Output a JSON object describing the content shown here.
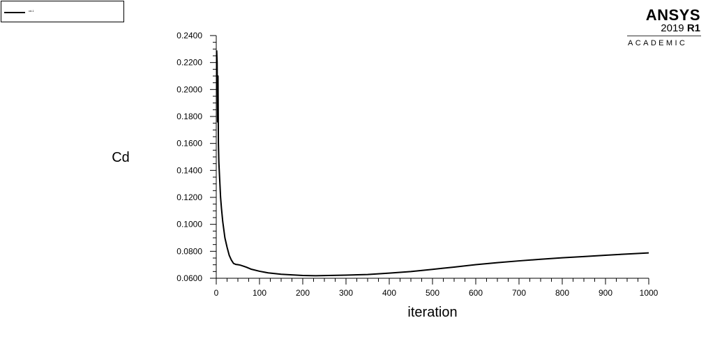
{
  "legend": {
    "entry": "cd-1"
  },
  "logo": {
    "brand": "ANSYS",
    "version": "2019",
    "release": "R1",
    "edition": "ACADEMIC"
  },
  "chart_data": {
    "type": "line",
    "title": "",
    "xlabel": "iteration",
    "ylabel": "Cd",
    "xlim": [
      0,
      1000
    ],
    "ylim": [
      0.06,
      0.24
    ],
    "x_ticks": [
      "0",
      "100",
      "200",
      "300",
      "400",
      "500",
      "600",
      "700",
      "800",
      "900",
      "1000"
    ],
    "y_ticks": [
      "0.0600",
      "0.0800",
      "0.1000",
      "0.1200",
      "0.1400",
      "0.1600",
      "0.1800",
      "0.2000",
      "0.2200",
      "0.2400"
    ],
    "grid": false,
    "legend_position": "top-left",
    "series": [
      {
        "name": "cd-1",
        "x": [
          1,
          2,
          3,
          4,
          5,
          6,
          8,
          10,
          12,
          15,
          20,
          25,
          30,
          35,
          40,
          45,
          50,
          55,
          60,
          70,
          80,
          100,
          120,
          150,
          200,
          230,
          250,
          300,
          350,
          400,
          450,
          500,
          550,
          600,
          650,
          700,
          750,
          800,
          850,
          900,
          950,
          1000
        ],
        "y": [
          0.229,
          0.22,
          0.176,
          0.21,
          0.16,
          0.146,
          0.133,
          0.12,
          0.112,
          0.102,
          0.09,
          0.083,
          0.077,
          0.0735,
          0.071,
          0.0703,
          0.0701,
          0.0698,
          0.0693,
          0.0682,
          0.0668,
          0.0652,
          0.064,
          0.063,
          0.0621,
          0.0619,
          0.062,
          0.0623,
          0.0628,
          0.0638,
          0.065,
          0.0666,
          0.0683,
          0.0701,
          0.0716,
          0.0729,
          0.0741,
          0.0752,
          0.0761,
          0.0771,
          0.078,
          0.0788
        ],
        "color": "#000000"
      }
    ]
  }
}
